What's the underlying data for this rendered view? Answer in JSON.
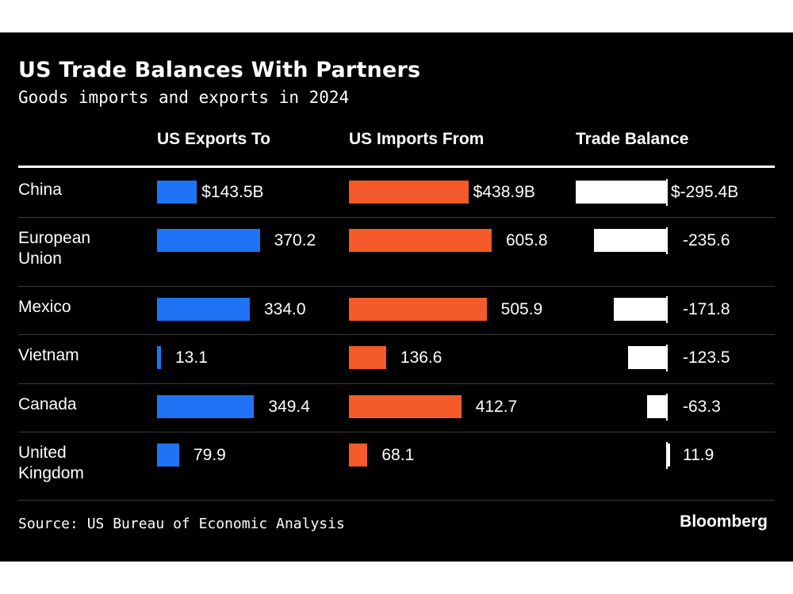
{
  "title": "US Trade Balances With Partners",
  "subtitle": "Goods imports and exports in 2024",
  "source": "Source: US Bureau of Economic Analysis",
  "brand": "Bloomberg",
  "colors": {
    "exports": "#1f74f5",
    "imports": "#f45a2a",
    "balance": "#ffffff",
    "background": "#000000"
  },
  "chart_data": {
    "type": "table",
    "columns": [
      "US Exports To",
      "US Imports From",
      "Trade Balance"
    ],
    "unit": "$B",
    "rows": [
      {
        "country": "China",
        "exports": 143.5,
        "imports": 438.9,
        "balance": -295.4,
        "exports_label": "$143.5B",
        "imports_label": "$438.9B",
        "balance_label": "$-295.4B"
      },
      {
        "country": "European\nUnion",
        "exports": 370.2,
        "imports": 605.8,
        "balance": -235.6,
        "exports_label": "370.2",
        "imports_label": "605.8",
        "balance_label": "-235.6"
      },
      {
        "country": "Mexico",
        "exports": 334.0,
        "imports": 505.9,
        "balance": -171.8,
        "exports_label": "334.0",
        "imports_label": "505.9",
        "balance_label": "-171.8"
      },
      {
        "country": "Vietnam",
        "exports": 13.1,
        "imports": 136.6,
        "balance": -123.5,
        "exports_label": "13.1",
        "imports_label": "136.6",
        "balance_label": "-123.5"
      },
      {
        "country": "Canada",
        "exports": 349.4,
        "imports": 412.7,
        "balance": -63.3,
        "exports_label": "349.4",
        "imports_label": "412.7",
        "balance_label": "-63.3"
      },
      {
        "country": "United\nKingdom",
        "exports": 79.9,
        "imports": 68.1,
        "balance": 11.9,
        "exports_label": "79.9",
        "imports_label": "68.1",
        "balance_label": "11.9"
      }
    ]
  }
}
